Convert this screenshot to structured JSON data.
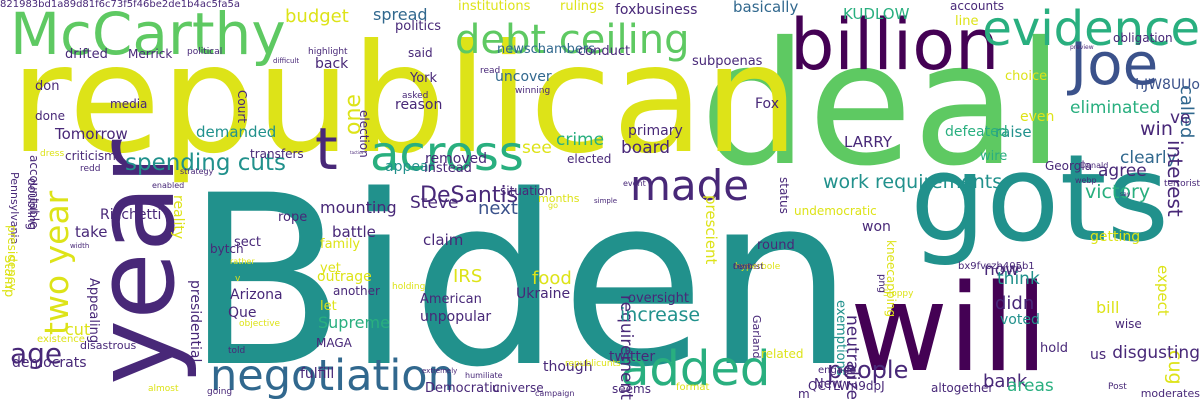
{
  "colors": {
    "teal": "#21918c",
    "green": "#5ec962",
    "lime": "#b5de2b",
    "yellow": "#dde318",
    "cyan": "#29af7f",
    "blue": "#3b528b",
    "purple": "#482878",
    "dark": "#440154",
    "steel": "#31688e"
  },
  "words": [
    {
      "text": "Biden",
      "color": "teal"
    },
    {
      "text": "deal",
      "color": "green"
    },
    {
      "text": "republican",
      "color": "yellow"
    },
    {
      "text": "will",
      "color": "dark"
    },
    {
      "text": "gots",
      "color": "teal"
    },
    {
      "text": "year",
      "color": "purple"
    },
    {
      "text": "billion",
      "color": "dark"
    },
    {
      "text": "McCarthy",
      "color": "green"
    },
    {
      "text": "debt ceiling",
      "color": "green"
    },
    {
      "text": "evidence",
      "color": "cyan"
    },
    {
      "text": "Joe",
      "color": "blue"
    },
    {
      "text": "negotiation",
      "color": "steel"
    },
    {
      "text": "across",
      "color": "cyan"
    },
    {
      "text": "made",
      "color": "purple"
    },
    {
      "text": "added",
      "color": "cyan"
    },
    {
      "text": "t",
      "color": "purple"
    },
    {
      "text": "two year",
      "color": "yellow"
    },
    {
      "text": "age",
      "color": "purple"
    },
    {
      "text": "spending cuts",
      "color": "teal"
    },
    {
      "text": "work requirements",
      "color": "teal"
    },
    {
      "text": "people",
      "color": "purple"
    },
    {
      "text": "one",
      "color": "yellow"
    },
    {
      "text": "DeSantis",
      "color": "purple"
    },
    {
      "text": "Steve",
      "color": "purple"
    },
    {
      "text": "next",
      "color": "blue"
    },
    {
      "text": "budget",
      "color": "yellow"
    },
    {
      "text": "spread",
      "color": "steel"
    },
    {
      "text": "institutions",
      "color": "yellow"
    },
    {
      "text": "rulings",
      "color": "yellow"
    },
    {
      "text": "foxbusiness",
      "color": "purple"
    },
    {
      "text": "basically",
      "color": "steel"
    },
    {
      "text": "KUDLOW",
      "color": "cyan"
    },
    {
      "text": "accounts",
      "color": "purple"
    },
    {
      "text": "line",
      "color": "yellow"
    },
    {
      "text": "obligation",
      "color": "purple"
    },
    {
      "text": "called",
      "color": "steel"
    },
    {
      "text": "ve",
      "color": "purple"
    },
    {
      "text": "hJW8UUo",
      "color": "blue"
    },
    {
      "text": "eliminated",
      "color": "cyan"
    },
    {
      "text": "win",
      "color": "purple"
    },
    {
      "text": "clearly",
      "color": "steel"
    },
    {
      "text": "agree",
      "color": "purple"
    },
    {
      "text": "victory",
      "color": "cyan"
    },
    {
      "text": "Georgia",
      "color": "purple"
    },
    {
      "text": "raise",
      "color": "teal"
    },
    {
      "text": "defeated",
      "color": "cyan"
    },
    {
      "text": "wire",
      "color": "cyan"
    },
    {
      "text": "choice",
      "color": "yellow"
    },
    {
      "text": "even",
      "color": "yellow"
    },
    {
      "text": "politics",
      "color": "purple"
    },
    {
      "text": "back",
      "color": "purple"
    },
    {
      "text": "said",
      "color": "purple"
    },
    {
      "text": "newschambers",
      "color": "steel"
    },
    {
      "text": "conduct",
      "color": "purple"
    },
    {
      "text": "subpoenas",
      "color": "purple"
    },
    {
      "text": "uncover",
      "color": "steel"
    },
    {
      "text": "York",
      "color": "purple"
    },
    {
      "text": "election",
      "color": "purple"
    },
    {
      "text": "reason",
      "color": "purple"
    },
    {
      "text": "asked",
      "color": "purple"
    },
    {
      "text": "winning",
      "color": "purple"
    },
    {
      "text": "read",
      "color": "purple"
    },
    {
      "text": "drifted",
      "color": "purple"
    },
    {
      "text": "Merrick",
      "color": "purple"
    },
    {
      "text": "political",
      "color": "purple"
    },
    {
      "text": "highlight",
      "color": "purple"
    },
    {
      "text": "don",
      "color": "purple"
    },
    {
      "text": "media",
      "color": "purple"
    },
    {
      "text": "done",
      "color": "purple"
    },
    {
      "text": "Court",
      "color": "purple"
    },
    {
      "text": "Tomorrow",
      "color": "purple"
    },
    {
      "text": "demanded",
      "color": "teal"
    },
    {
      "text": "criticism",
      "color": "purple"
    },
    {
      "text": "transfers",
      "color": "purple"
    },
    {
      "text": "Pennsylvania",
      "color": "purple"
    },
    {
      "text": "doubling",
      "color": "purple"
    },
    {
      "text": "accountable",
      "color": "purple"
    },
    {
      "text": "presidency",
      "color": "yellow"
    },
    {
      "text": "Stamp",
      "color": "yellow"
    },
    {
      "text": "Ricchetti",
      "color": "purple"
    },
    {
      "text": "take",
      "color": "purple"
    },
    {
      "text": "cut",
      "color": "yellow"
    },
    {
      "text": "reality",
      "color": "yellow"
    },
    {
      "text": "sect",
      "color": "purple"
    },
    {
      "text": "family",
      "color": "yellow"
    },
    {
      "text": "yet",
      "color": "yellow"
    },
    {
      "text": "appear",
      "color": "teal"
    },
    {
      "text": "mounting",
      "color": "purple"
    },
    {
      "text": "battle",
      "color": "purple"
    },
    {
      "text": "claim",
      "color": "purple"
    },
    {
      "text": "IRS",
      "color": "yellow"
    },
    {
      "text": "food",
      "color": "yellow"
    },
    {
      "text": "Ukraine",
      "color": "purple"
    },
    {
      "text": "American",
      "color": "purple"
    },
    {
      "text": "outrage",
      "color": "yellow"
    },
    {
      "text": "another",
      "color": "purple"
    },
    {
      "text": "let",
      "color": "yellow"
    },
    {
      "text": "Supreme",
      "color": "cyan"
    },
    {
      "text": "unpopular",
      "color": "purple"
    },
    {
      "text": "Arizona",
      "color": "purple"
    },
    {
      "text": "Que",
      "color": "purple"
    },
    {
      "text": "presidential",
      "color": "purple"
    },
    {
      "text": "Appealing",
      "color": "purple"
    },
    {
      "text": "MAGA",
      "color": "purple"
    },
    {
      "text": "existence",
      "color": "yellow"
    },
    {
      "text": "disastrous",
      "color": "purple"
    },
    {
      "text": "democrats",
      "color": "purple"
    },
    {
      "text": "fulfill",
      "color": "purple"
    },
    {
      "text": "Democratic",
      "color": "purple"
    },
    {
      "text": "universe",
      "color": "purple"
    },
    {
      "text": "seems",
      "color": "purple"
    },
    {
      "text": "format",
      "color": "yellow"
    },
    {
      "text": "though",
      "color": "purple"
    },
    {
      "text": "twitter",
      "color": "purple"
    },
    {
      "text": "related",
      "color": "yellow"
    },
    {
      "text": "crime",
      "color": "cyan"
    },
    {
      "text": "primary",
      "color": "purple"
    },
    {
      "text": "board",
      "color": "purple"
    },
    {
      "text": "elected",
      "color": "purple"
    },
    {
      "text": "removed",
      "color": "purple"
    },
    {
      "text": "instead",
      "color": "purple"
    },
    {
      "text": "see",
      "color": "yellow"
    },
    {
      "text": "months",
      "color": "yellow"
    },
    {
      "text": "requirement",
      "color": "purple"
    },
    {
      "text": "increase",
      "color": "teal"
    },
    {
      "text": "oversight",
      "color": "purple"
    },
    {
      "text": "prescient",
      "color": "yellow"
    },
    {
      "text": "Fox",
      "color": "purple"
    },
    {
      "text": "LARRY",
      "color": "purple"
    },
    {
      "text": "status",
      "color": "purple"
    },
    {
      "text": "undemocratic",
      "color": "yellow"
    },
    {
      "text": "round",
      "color": "purple"
    },
    {
      "text": "won",
      "color": "purple"
    },
    {
      "text": "now",
      "color": "purple"
    },
    {
      "text": "think",
      "color": "teal"
    },
    {
      "text": "voted",
      "color": "teal"
    },
    {
      "text": "didn",
      "color": "purple"
    },
    {
      "text": "neutralize",
      "color": "purple"
    },
    {
      "text": "exemptions",
      "color": "teal"
    },
    {
      "text": "Garland",
      "color": "purple"
    },
    {
      "text": "kneecapping",
      "color": "yellow"
    },
    {
      "text": "Sloppy",
      "color": "yellow"
    },
    {
      "text": "bx9fvszh405b1",
      "color": "purple"
    },
    {
      "text": "auto",
      "color": "purple"
    },
    {
      "text": "interest",
      "color": "purple"
    },
    {
      "text": "getting",
      "color": "yellow"
    },
    {
      "text": "bill",
      "color": "yellow"
    },
    {
      "text": "wise",
      "color": "purple"
    },
    {
      "text": "expect",
      "color": "yellow"
    },
    {
      "text": "cug",
      "color": "yellow"
    },
    {
      "text": "disgusting",
      "color": "purple"
    },
    {
      "text": "us",
      "color": "purple"
    },
    {
      "text": "hold",
      "color": "purple"
    },
    {
      "text": "bank",
      "color": "purple"
    },
    {
      "text": "areas",
      "color": "cyan"
    },
    {
      "text": "altogether",
      "color": "purple"
    },
    {
      "text": "New",
      "color": "purple"
    },
    {
      "text": "QCTLWn9dpJ",
      "color": "purple"
    },
    {
      "text": "Post",
      "color": "purple"
    },
    {
      "text": "moderates",
      "color": "purple"
    },
    {
      "text": "engage",
      "color": "purple"
    },
    {
      "text": "hyperbole",
      "color": "yellow"
    },
    {
      "text": "centrist",
      "color": "purple"
    },
    {
      "text": "front",
      "color": "purple"
    },
    {
      "text": "rope",
      "color": "purple"
    },
    {
      "text": "Donald",
      "color": "purple"
    },
    {
      "text": "webp",
      "color": "purple"
    },
    {
      "text": "preview",
      "color": "purple"
    },
    {
      "text": "terrorist",
      "color": "purple"
    },
    {
      "text": "say",
      "color": "purple"
    },
    {
      "text": "bytch",
      "color": "purple"
    },
    {
      "text": "png",
      "color": "purple"
    },
    {
      "text": "m",
      "color": "purple"
    },
    {
      "text": "v",
      "color": "yellow"
    },
    {
      "text": "objective",
      "color": "yellow"
    },
    {
      "text": "enabled",
      "color": "purple"
    },
    {
      "text": "strategy",
      "color": "purple"
    },
    {
      "text": "redd",
      "color": "purple"
    },
    {
      "text": "dress",
      "color": "yellow"
    },
    {
      "text": "rather",
      "color": "yellow"
    },
    {
      "text": "width",
      "color": "purple"
    },
    {
      "text": "situation",
      "color": "purple"
    },
    {
      "text": "go",
      "color": "yellow"
    },
    {
      "text": "event",
      "color": "purple"
    },
    {
      "text": "simple",
      "color": "purple"
    },
    {
      "text": "holding",
      "color": "yellow"
    },
    {
      "text": "told",
      "color": "purple"
    },
    {
      "text": "republicunts",
      "color": "yellow"
    },
    {
      "text": "humiliate",
      "color": "purple"
    },
    {
      "text": "extremely",
      "color": "purple"
    },
    {
      "text": "almost",
      "color": "yellow"
    },
    {
      "text": "going",
      "color": "purple"
    },
    {
      "text": "campaign",
      "color": "purple"
    },
    {
      "text": "difficult",
      "color": "purple"
    },
    {
      "text": "tactics",
      "color": "purple"
    },
    {
      "text": "821983bd1a89d81f6c73f5f46be2de1b4ac5fa5a",
      "color": "purple"
    }
  ]
}
